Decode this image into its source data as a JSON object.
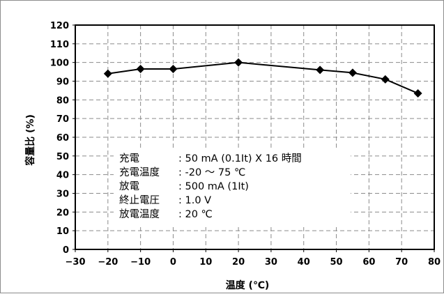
{
  "chart_data": {
    "type": "line",
    "title": "",
    "xlabel": "温度 (℃)",
    "ylabel": "容量比 (%)",
    "xlim": [
      -30,
      80
    ],
    "ylim": [
      0,
      120
    ],
    "xticks": [
      -30,
      -20,
      -10,
      0,
      10,
      20,
      30,
      40,
      50,
      60,
      70,
      80
    ],
    "yticks": [
      0,
      10,
      20,
      30,
      40,
      50,
      60,
      70,
      80,
      90,
      100,
      110,
      120
    ],
    "grid": true,
    "grid_style": "dashed",
    "legend": "none",
    "marker": "diamond",
    "series": [
      {
        "x": [
          -20,
          -10,
          0,
          20,
          45,
          55,
          65,
          75
        ],
        "y": [
          94,
          96.5,
          96.5,
          100,
          96,
          94.5,
          91,
          83.5
        ],
        "color": "#000000"
      }
    ],
    "annotations": [
      {
        "label": "充電",
        "value": ": 50 mA (0.1It) X 16 時間"
      },
      {
        "label": "充電温度",
        "value": ": -20 ～ 75 ℃"
      },
      {
        "label": "放電",
        "value": ": 500 mA (1It)"
      },
      {
        "label": "終止電圧",
        "value": ": 1.0 V"
      },
      {
        "label": "放電温度",
        "value": ": 20 ℃"
      }
    ]
  }
}
